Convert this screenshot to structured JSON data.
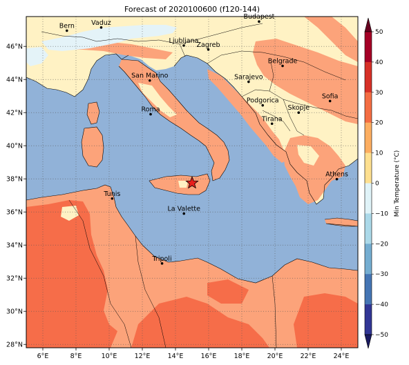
{
  "title": "Forecast of 2020100600 (f120-144)",
  "colorbar": {
    "label": "Min Temperature (°C)",
    "ticks": [
      "50",
      "40",
      "30",
      "20",
      "10",
      "0",
      "−10",
      "−20",
      "−30",
      "−40",
      "−50"
    ],
    "colors": [
      "#a50026",
      "#d73027",
      "#f46d43",
      "#fdae61",
      "#fee090",
      "#e0f3f8",
      "#abd9e9",
      "#74add1",
      "#4575b4",
      "#313695"
    ],
    "extend": "both"
  },
  "axes": {
    "x_ticks": [
      "6°E",
      "8°E",
      "10°E",
      "12°E",
      "14°E",
      "16°E",
      "18°E",
      "20°E",
      "22°E",
      "24°E"
    ],
    "y_ticks": [
      "46°N",
      "44°N",
      "42°N",
      "40°N",
      "38°N",
      "36°N",
      "34°N",
      "32°N",
      "30°N",
      "28°N"
    ],
    "grid": true,
    "grid_style": "dotted"
  },
  "colors": {
    "sea": "#91b2d8",
    "warm_land": "#fca37a",
    "hot_land": "#f66d49",
    "mild_land": "#fff2c4",
    "cool_land": "#e4f3f8"
  },
  "cities": [
    {
      "name": "Bern",
      "lon": 7.45,
      "lat": 46.95
    },
    {
      "name": "Vaduz",
      "lon": 9.52,
      "lat": 47.14
    },
    {
      "name": "Budapest",
      "lon": 19.04,
      "lat": 47.5
    },
    {
      "name": "Ljubljana",
      "lon": 14.5,
      "lat": 46.05
    },
    {
      "name": "Zagreb",
      "lon": 15.98,
      "lat": 45.81
    },
    {
      "name": "Belgrade",
      "lon": 20.46,
      "lat": 44.82
    },
    {
      "name": "San Marino",
      "lon": 12.45,
      "lat": 43.94
    },
    {
      "name": "Sarajevo",
      "lon": 18.41,
      "lat": 43.86
    },
    {
      "name": "Sofia",
      "lon": 23.32,
      "lat": 42.7
    },
    {
      "name": "Podgorica",
      "lon": 19.26,
      "lat": 42.44
    },
    {
      "name": "Skopje",
      "lon": 21.43,
      "lat": 42.0
    },
    {
      "name": "Roma",
      "lon": 12.5,
      "lat": 41.9
    },
    {
      "name": "Tirana",
      "lon": 19.82,
      "lat": 41.33
    },
    {
      "name": "Athens",
      "lon": 23.73,
      "lat": 37.98
    },
    {
      "name": "Tunis",
      "lon": 10.18,
      "lat": 36.81
    },
    {
      "name": "La Valette",
      "lon": 14.51,
      "lat": 35.9
    },
    {
      "name": "Tripoli",
      "lon": 13.19,
      "lat": 32.89
    }
  ],
  "marker": {
    "type": "star",
    "lon": 15.0,
    "lat": 37.75,
    "color": "#e8201c"
  }
}
